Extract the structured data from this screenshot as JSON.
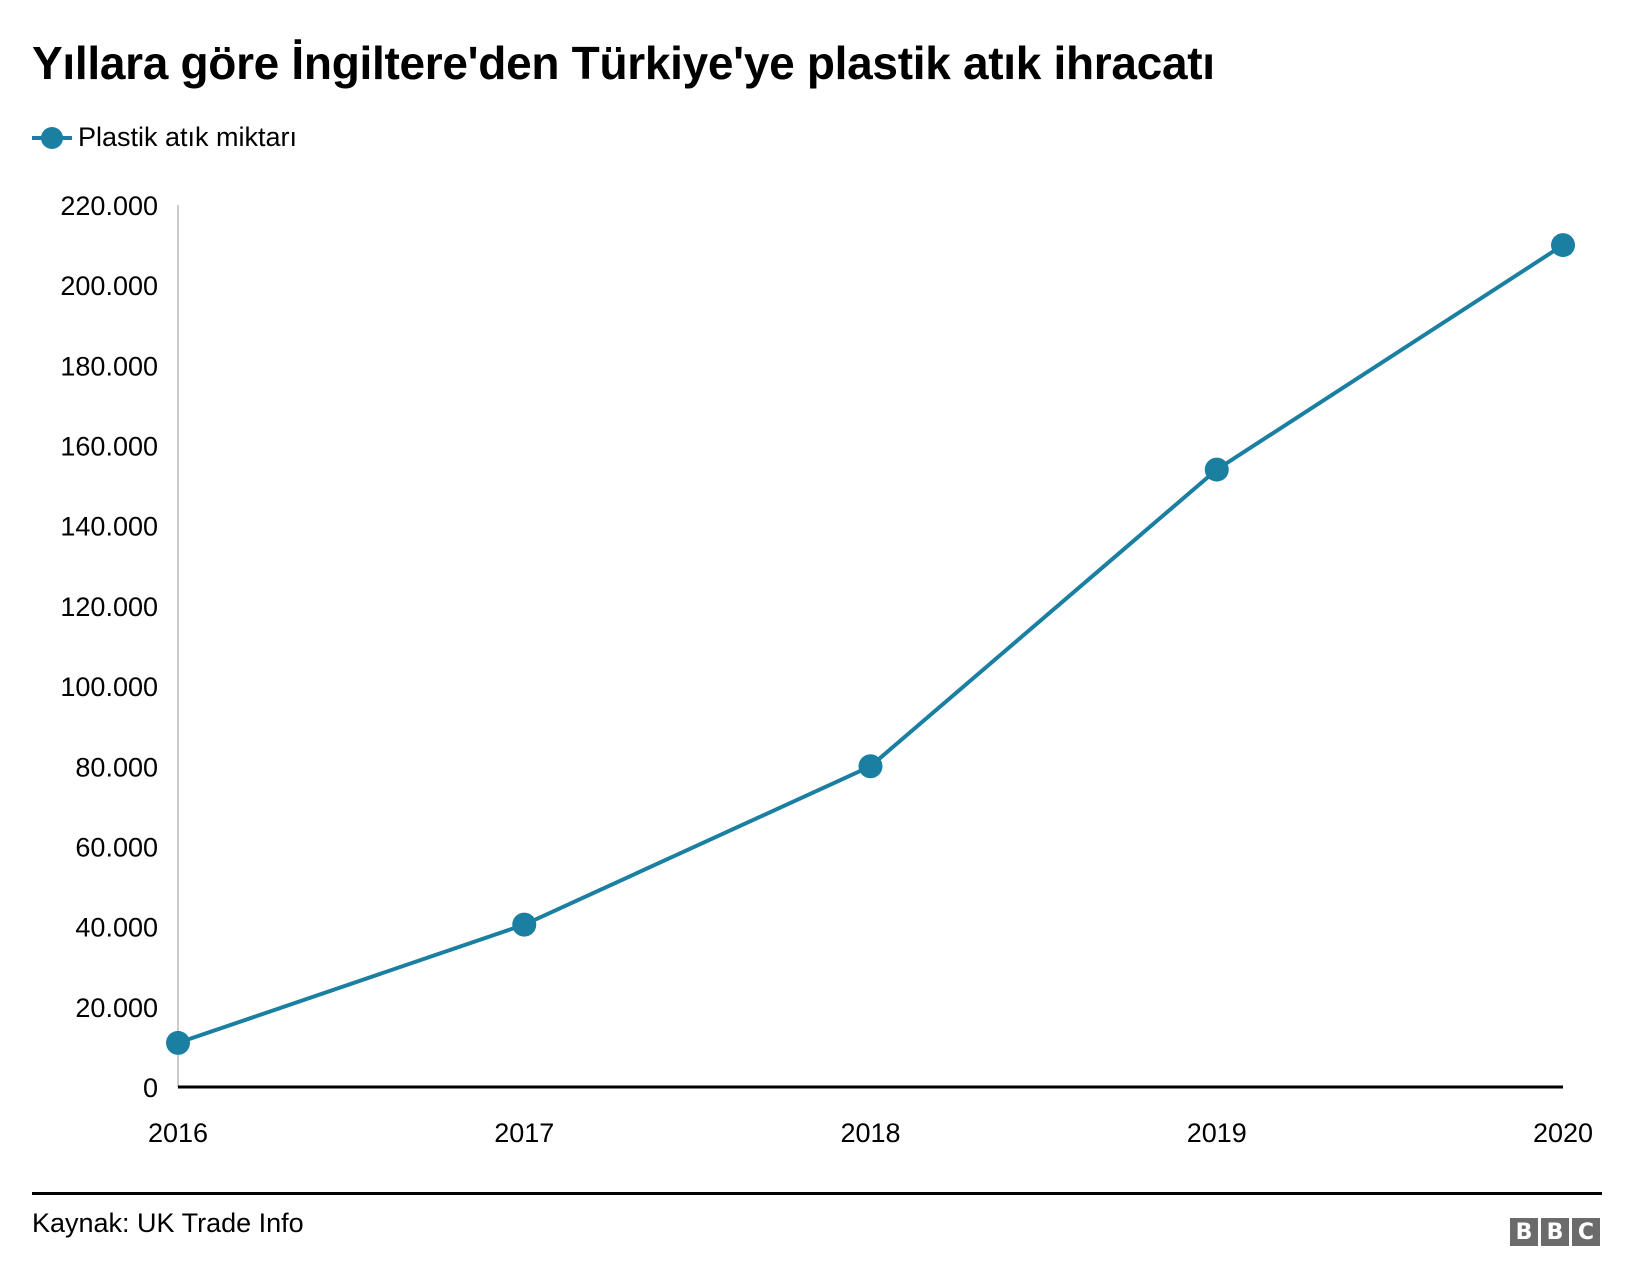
{
  "title": "Yıllara göre İngiltere'den Türkiye'ye plastik atık ihracatı",
  "legend": {
    "label": "Plastik atık miktarı",
    "color": "#1a7fa1"
  },
  "source": "Kaynak: UK Trade Info",
  "logo": [
    "B",
    "B",
    "C"
  ],
  "chart_data": {
    "type": "line",
    "title": "Yıllara göre İngiltere'den Türkiye'ye plastik atık ihracatı",
    "xlabel": "",
    "ylabel": "",
    "categories": [
      "2016",
      "2017",
      "2018",
      "2019",
      "2020"
    ],
    "series": [
      {
        "name": "Plastik atık miktarı",
        "color": "#1a7fa1",
        "values": [
          11000,
          40500,
          80000,
          154000,
          210000
        ]
      }
    ],
    "ylim": [
      0,
      220000
    ],
    "yticks": [
      0,
      20000,
      40000,
      60000,
      80000,
      100000,
      120000,
      140000,
      160000,
      180000,
      200000,
      220000
    ],
    "ytick_labels": [
      "0",
      "20.000",
      "40.000",
      "60.000",
      "80.000",
      "100.000",
      "120.000",
      "140.000",
      "160.000",
      "180.000",
      "200.000",
      "220.000"
    ],
    "grid": false,
    "legend_position": "top-left"
  }
}
